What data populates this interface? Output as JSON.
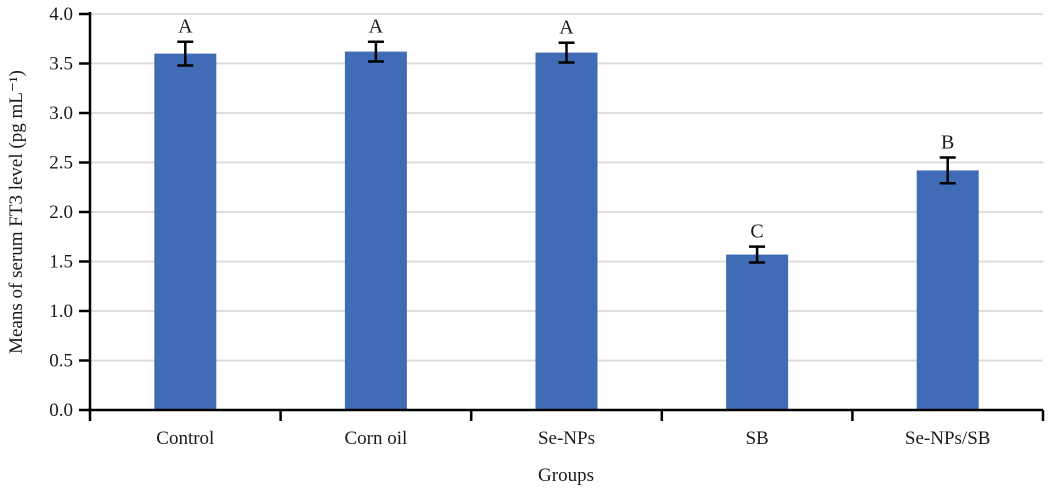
{
  "figure": {
    "background": "#ffffff"
  },
  "chart_data": {
    "type": "bar",
    "title": "",
    "xlabel": "Groups",
    "ylabel": "Means of serum FT3 level (pg mL⁻¹)",
    "categories": [
      "Control",
      "Corn oil",
      "Se-NPs",
      "SB",
      "Se-NPs/SB"
    ],
    "values": [
      3.6,
      3.62,
      3.61,
      1.57,
      2.42
    ],
    "errors": [
      0.12,
      0.1,
      0.1,
      0.08,
      0.13
    ],
    "significance_letters": [
      "A",
      "A",
      "A",
      "C",
      "B"
    ],
    "ylim": [
      0,
      4
    ],
    "ytick_step": 0.5,
    "ytick_labels": [
      "0.0",
      "0.5",
      "1.0",
      "1.5",
      "2.0",
      "2.5",
      "3.0",
      "3.5",
      "4.0"
    ],
    "grid": true,
    "legend_position": "none",
    "colors": {
      "bar": "#3F6CB4",
      "gridline": "#D9D9D9",
      "axis": "#000000",
      "error_bar": "#000000",
      "text": "#1A1A1A"
    }
  }
}
